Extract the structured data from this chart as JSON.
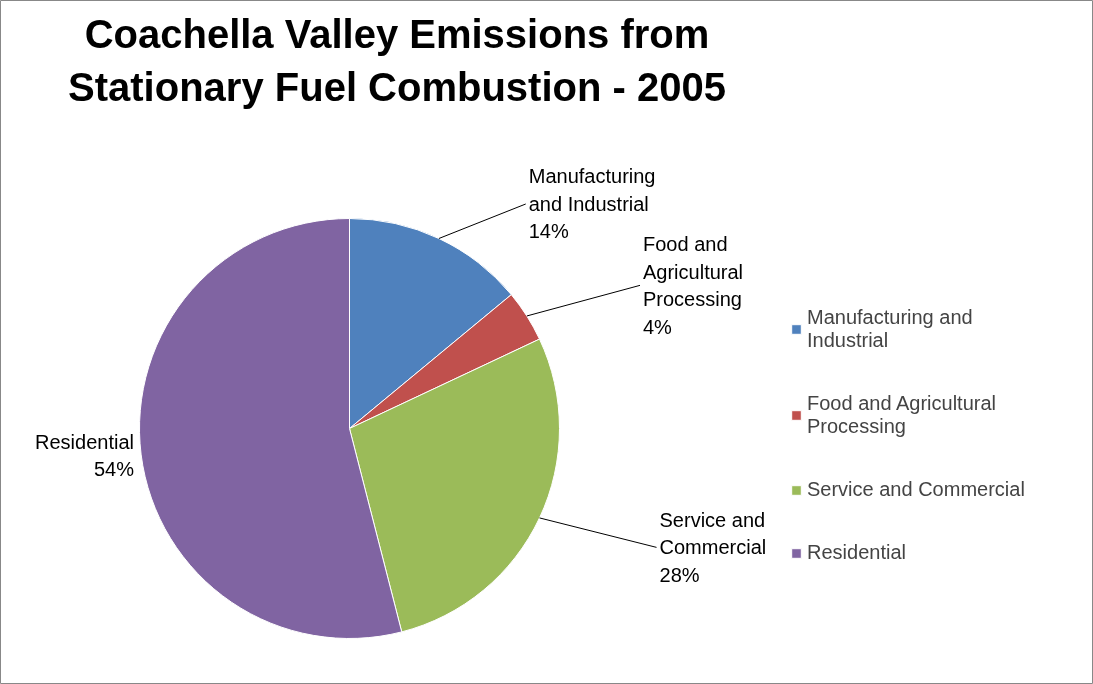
{
  "chart_data": {
    "type": "pie",
    "title": "Coachella Valley Emissions from Stationary Fuel Combustion - 2005",
    "categories": [
      "Manufacturing and Industrial",
      "Food and Agricultural Processing",
      "Service and Commercial",
      "Residential"
    ],
    "values": [
      14,
      4,
      28,
      54
    ],
    "colors": [
      "#4f81bd",
      "#c0504d",
      "#9bbb59",
      "#8064a2"
    ],
    "value_labels": [
      "14%",
      "4%",
      "28%",
      "54%"
    ],
    "legend": "right"
  }
}
